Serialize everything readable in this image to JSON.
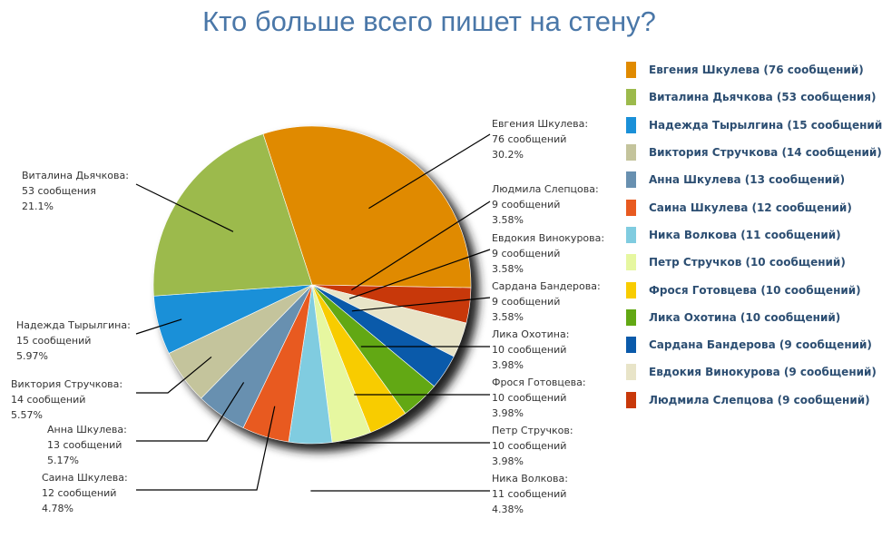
{
  "chart_data": {
    "type": "pie",
    "title": "Кто больше всего пишет на стену?",
    "legend_position": "right",
    "slices": [
      {
        "name": "Евгения Шкулева",
        "value": 76,
        "count_label": "76 сообщений",
        "percent": "30.2%",
        "legend": "Евгения Шкулева (76 сообщений)",
        "color": "#e08a00"
      },
      {
        "name": "Людмила Слепцова",
        "value": 9,
        "count_label": "9 сообщений",
        "percent": "3.58%",
        "legend": "Людмила Слепцова (9 сообщений)",
        "color": "#c8380a"
      },
      {
        "name": "Евдокия Винокурова",
        "value": 9,
        "count_label": "9 сообщений",
        "percent": "3.58%",
        "legend": "Евдокия Винокурова (9 сообщений)",
        "color": "#e8e4c8"
      },
      {
        "name": "Сардана Бандерова",
        "value": 9,
        "count_label": "9 сообщений",
        "percent": "3.58%",
        "legend": "Сардана Бандерова (9 сообщений)",
        "color": "#0a5aaa"
      },
      {
        "name": "Лика Охотина",
        "value": 10,
        "count_label": "10 сообщений",
        "percent": "3.98%",
        "legend": "Лика Охотина (10 сообщений)",
        "color": "#62a814"
      },
      {
        "name": "Фрося Готовцева",
        "value": 10,
        "count_label": "10 сообщений",
        "percent": "3.98%",
        "legend": "Фрося Готовцева (10 сообщений)",
        "color": "#f8cc00"
      },
      {
        "name": "Петр Стручков",
        "value": 10,
        "count_label": "10 сообщений",
        "percent": "3.98%",
        "legend": "Петр Стручков (10 сообщений)",
        "color": "#e6f7a0"
      },
      {
        "name": "Ника Волкова",
        "value": 11,
        "count_label": "11 сообщений",
        "percent": "4.38%",
        "legend": "Ника Волкова (11 сообщений)",
        "color": "#80cce0"
      },
      {
        "name": "Саина Шкулева",
        "value": 12,
        "count_label": "12 сообщений",
        "percent": "4.78%",
        "legend": "Саина Шкулева (12 сообщений)",
        "color": "#e85a20"
      },
      {
        "name": "Анна Шкулева",
        "value": 13,
        "count_label": "13 сообщений",
        "percent": "5.17%",
        "legend": "Анна Шкулева (13 сообщений)",
        "color": "#6890b0"
      },
      {
        "name": "Виктория Стручкова",
        "value": 14,
        "count_label": "14 сообщений",
        "percent": "5.57%",
        "legend": "Виктория Стручкова (14 сообщений)",
        "color": "#c4c49c"
      },
      {
        "name": "Надежда Тырылгина",
        "value": 15,
        "count_label": "15 сообщений",
        "percent": "5.97%",
        "legend": "Надежда Тырылгина (15 сообщений",
        "color": "#1a90d8"
      },
      {
        "name": "Виталина Дьячкова",
        "value": 53,
        "count_label": "53 сообщения",
        "percent": "21.1%",
        "legend": "Виталина Дьячкова (53 сообщения)",
        "color": "#9cba4c"
      }
    ],
    "legend_order": [
      0,
      12,
      11,
      10,
      9,
      8,
      7,
      6,
      5,
      4,
      3,
      2,
      1
    ]
  }
}
